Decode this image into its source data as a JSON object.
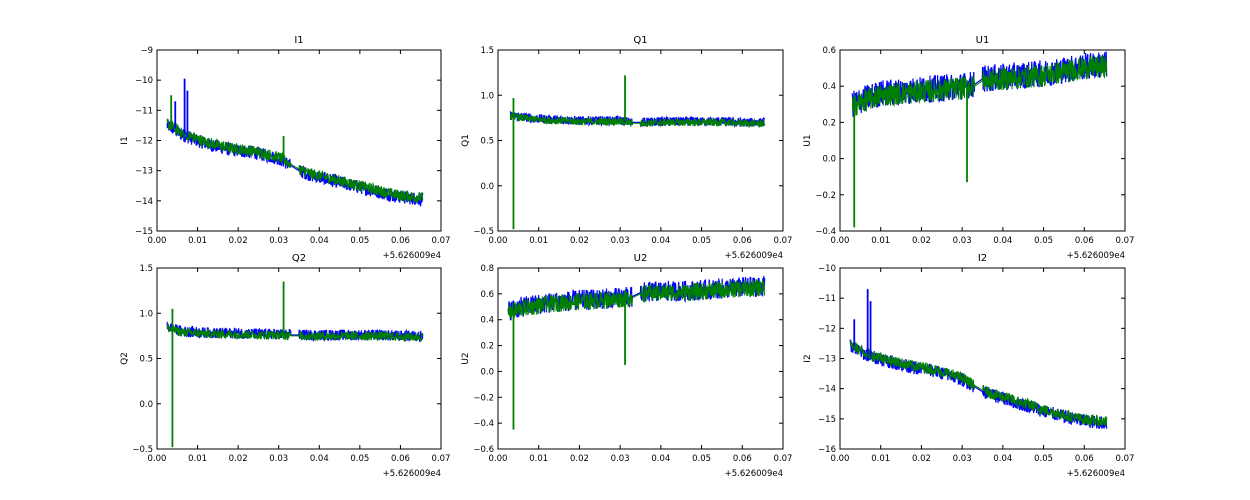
{
  "chart_data": [
    {
      "type": "line",
      "title": "I1",
      "ylabel": "I1",
      "xlim": [
        0.0,
        0.07
      ],
      "ylim": [
        -15,
        -9
      ],
      "xticks": [
        "0.00",
        "0.01",
        "0.02",
        "0.03",
        "0.04",
        "0.05",
        "0.06",
        "0.07"
      ],
      "yticks": [
        "−15",
        "−14",
        "−13",
        "−12",
        "−11",
        "−10",
        "−9"
      ],
      "x_offset_label": "+5.626009e4",
      "grid": false,
      "series": [
        {
          "color": "#0000ff",
          "x": [
            0.0025,
            0.004,
            0.006,
            0.008,
            0.01,
            0.012,
            0.015,
            0.018,
            0.021,
            0.024,
            0.027,
            0.03,
            0.032,
            0.035,
            0.038,
            0.041,
            0.044,
            0.047,
            0.05,
            0.053,
            0.056,
            0.059,
            0.062,
            0.0655
          ],
          "y": [
            -11.5,
            -11.6,
            -11.8,
            -11.9,
            -12.0,
            -12.1,
            -12.2,
            -12.3,
            -12.35,
            -12.4,
            -12.5,
            -12.6,
            -12.75,
            -13.0,
            -13.15,
            -13.25,
            -13.35,
            -13.45,
            -13.55,
            -13.65,
            -13.75,
            -13.85,
            -13.9,
            -13.95
          ]
        },
        {
          "color": "#007f00",
          "x": [
            0.0025,
            0.004,
            0.006,
            0.008,
            0.01,
            0.012,
            0.015,
            0.018,
            0.021,
            0.024,
            0.027,
            0.03,
            0.032,
            0.035,
            0.038,
            0.041,
            0.044,
            0.047,
            0.05,
            0.053,
            0.056,
            0.059,
            0.062,
            0.0655
          ],
          "y": [
            -11.45,
            -11.55,
            -11.75,
            -11.85,
            -11.95,
            -12.05,
            -12.15,
            -12.25,
            -12.3,
            -12.35,
            -12.45,
            -12.55,
            -12.7,
            -12.95,
            -13.1,
            -13.2,
            -13.3,
            -13.4,
            -13.5,
            -13.6,
            -13.7,
            -13.8,
            -13.85,
            -13.9
          ]
        }
      ],
      "spikes": [
        {
          "x": 0.0035,
          "y0": -11.5,
          "y1": -10.5,
          "color": "#007f00"
        },
        {
          "x": 0.0045,
          "y0": -11.6,
          "y1": -10.7,
          "color": "#0000ff"
        },
        {
          "x": 0.0068,
          "y0": -11.8,
          "y1": -9.95,
          "color": "#0000ff"
        },
        {
          "x": 0.0075,
          "y0": -11.9,
          "y1": -10.35,
          "color": "#0000ff"
        },
        {
          "x": 0.0312,
          "y0": -12.6,
          "y1": -11.85,
          "color": "#007f00"
        }
      ],
      "noise_amp": 0.22,
      "gaps": [
        [
          0.033,
          0.035
        ]
      ]
    },
    {
      "type": "line",
      "title": "Q1",
      "ylabel": "Q1",
      "xlim": [
        0.0,
        0.07
      ],
      "ylim": [
        -0.5,
        1.5
      ],
      "xticks": [
        "0.00",
        "0.01",
        "0.02",
        "0.03",
        "0.04",
        "0.05",
        "0.06",
        "0.07"
      ],
      "yticks": [
        "−0.5",
        "0.0",
        "0.5",
        "1.0",
        "1.5"
      ],
      "x_offset_label": "+5.626009e4",
      "grid": false,
      "series": [
        {
          "color": "#0000ff",
          "x": [
            0.003,
            0.006,
            0.01,
            0.015,
            0.02,
            0.025,
            0.03,
            0.033,
            0.035,
            0.04,
            0.045,
            0.05,
            0.055,
            0.06,
            0.0655
          ],
          "y": [
            0.78,
            0.76,
            0.74,
            0.73,
            0.72,
            0.72,
            0.72,
            0.7,
            0.7,
            0.71,
            0.71,
            0.71,
            0.71,
            0.7,
            0.7
          ]
        },
        {
          "color": "#007f00",
          "x": [
            0.003,
            0.006,
            0.01,
            0.015,
            0.02,
            0.025,
            0.03,
            0.033,
            0.035,
            0.04,
            0.045,
            0.05,
            0.055,
            0.06,
            0.0655
          ],
          "y": [
            0.77,
            0.75,
            0.73,
            0.72,
            0.71,
            0.71,
            0.71,
            0.69,
            0.69,
            0.7,
            0.7,
            0.7,
            0.7,
            0.69,
            0.69
          ]
        }
      ],
      "spikes": [
        {
          "x": 0.0038,
          "y0": 0.78,
          "y1": -0.48,
          "color": "#007f00"
        },
        {
          "x": 0.0038,
          "y0": 0.78,
          "y1": 0.97,
          "color": "#007f00"
        },
        {
          "x": 0.0312,
          "y0": 0.72,
          "y1": 1.22,
          "color": "#007f00"
        }
      ],
      "noise_amp": 0.05,
      "gaps": [
        [
          0.033,
          0.035
        ]
      ]
    },
    {
      "type": "line",
      "title": "U1",
      "ylabel": "U1",
      "xlim": [
        0.0,
        0.07
      ],
      "ylim": [
        -0.4,
        0.6
      ],
      "xticks": [
        "0.00",
        "0.01",
        "0.02",
        "0.03",
        "0.04",
        "0.05",
        "0.06",
        "0.07"
      ],
      "yticks": [
        "−0.4",
        "−0.2",
        "0.0",
        "0.2",
        "0.4",
        "0.6"
      ],
      "x_offset_label": "+5.626009e4",
      "grid": false,
      "series": [
        {
          "color": "#0000ff",
          "x": [
            0.003,
            0.006,
            0.01,
            0.015,
            0.02,
            0.025,
            0.03,
            0.033,
            0.035,
            0.04,
            0.045,
            0.05,
            0.055,
            0.06,
            0.0655
          ],
          "y": [
            0.3,
            0.33,
            0.36,
            0.37,
            0.38,
            0.39,
            0.4,
            0.41,
            0.44,
            0.45,
            0.46,
            0.47,
            0.49,
            0.51,
            0.52
          ]
        },
        {
          "color": "#007f00",
          "x": [
            0.003,
            0.006,
            0.01,
            0.015,
            0.02,
            0.025,
            0.03,
            0.033,
            0.035,
            0.04,
            0.045,
            0.05,
            0.055,
            0.06,
            0.0655
          ],
          "y": [
            0.29,
            0.32,
            0.35,
            0.36,
            0.37,
            0.38,
            0.39,
            0.4,
            0.43,
            0.44,
            0.45,
            0.46,
            0.48,
            0.5,
            0.51
          ]
        }
      ],
      "spikes": [
        {
          "x": 0.0035,
          "y0": 0.3,
          "y1": -0.38,
          "color": "#007f00"
        },
        {
          "x": 0.0312,
          "y0": 0.4,
          "y1": -0.13,
          "color": "#007f00"
        }
      ],
      "noise_amp": 0.075,
      "gaps": [
        [
          0.033,
          0.035
        ]
      ]
    },
    {
      "type": "line",
      "title": "Q2",
      "ylabel": "Q2",
      "xlim": [
        0.0,
        0.07
      ],
      "ylim": [
        -0.5,
        1.5
      ],
      "xticks": [
        "0.00",
        "0.01",
        "0.02",
        "0.03",
        "0.04",
        "0.05",
        "0.06",
        "0.07"
      ],
      "yticks": [
        "−0.5",
        "0.0",
        "0.5",
        "1.0",
        "1.5"
      ],
      "x_offset_label": "+5.626009e4",
      "grid": false,
      "series": [
        {
          "color": "#0000ff",
          "x": [
            0.0025,
            0.006,
            0.01,
            0.015,
            0.02,
            0.025,
            0.03,
            0.033,
            0.035,
            0.04,
            0.045,
            0.05,
            0.055,
            0.06,
            0.0655
          ],
          "y": [
            0.85,
            0.8,
            0.79,
            0.78,
            0.78,
            0.77,
            0.77,
            0.76,
            0.76,
            0.76,
            0.76,
            0.76,
            0.76,
            0.75,
            0.75
          ]
        },
        {
          "color": "#007f00",
          "x": [
            0.0025,
            0.006,
            0.01,
            0.015,
            0.02,
            0.025,
            0.03,
            0.033,
            0.035,
            0.04,
            0.045,
            0.05,
            0.055,
            0.06,
            0.0655
          ],
          "y": [
            0.84,
            0.79,
            0.78,
            0.77,
            0.77,
            0.76,
            0.76,
            0.75,
            0.75,
            0.75,
            0.75,
            0.75,
            0.75,
            0.74,
            0.74
          ]
        }
      ],
      "spikes": [
        {
          "x": 0.0038,
          "y0": 0.85,
          "y1": -0.48,
          "color": "#007f00"
        },
        {
          "x": 0.0038,
          "y0": 0.85,
          "y1": 1.05,
          "color": "#007f00"
        },
        {
          "x": 0.0312,
          "y0": 0.77,
          "y1": 1.35,
          "color": "#007f00"
        }
      ],
      "noise_amp": 0.06,
      "gaps": [
        [
          0.033,
          0.035
        ]
      ]
    },
    {
      "type": "line",
      "title": "U2",
      "ylabel": "U2",
      "xlim": [
        0.0,
        0.07
      ],
      "ylim": [
        -0.6,
        0.8
      ],
      "xticks": [
        "0.00",
        "0.01",
        "0.02",
        "0.03",
        "0.04",
        "0.05",
        "0.06",
        "0.07"
      ],
      "yticks": [
        "−0.6",
        "−0.4",
        "−0.2",
        "0.0",
        "0.2",
        "0.4",
        "0.6",
        "0.8"
      ],
      "x_offset_label": "+5.626009e4",
      "grid": false,
      "series": [
        {
          "color": "#0000ff",
          "x": [
            0.0025,
            0.006,
            0.01,
            0.015,
            0.02,
            0.025,
            0.03,
            0.033,
            0.035,
            0.04,
            0.045,
            0.05,
            0.055,
            0.06,
            0.0655
          ],
          "y": [
            0.47,
            0.5,
            0.52,
            0.54,
            0.55,
            0.56,
            0.57,
            0.58,
            0.61,
            0.62,
            0.62,
            0.63,
            0.64,
            0.65,
            0.66
          ]
        },
        {
          "color": "#007f00",
          "x": [
            0.0025,
            0.006,
            0.01,
            0.015,
            0.02,
            0.025,
            0.03,
            0.033,
            0.035,
            0.04,
            0.045,
            0.05,
            0.055,
            0.06,
            0.0655
          ],
          "y": [
            0.46,
            0.49,
            0.51,
            0.53,
            0.54,
            0.55,
            0.56,
            0.57,
            0.6,
            0.61,
            0.61,
            0.62,
            0.63,
            0.64,
            0.65
          ]
        }
      ],
      "spikes": [
        {
          "x": 0.0038,
          "y0": 0.47,
          "y1": -0.45,
          "color": "#007f00"
        },
        {
          "x": 0.0312,
          "y0": 0.57,
          "y1": 0.05,
          "color": "#007f00"
        }
      ],
      "noise_amp": 0.08,
      "gaps": [
        [
          0.033,
          0.035
        ]
      ]
    },
    {
      "type": "line",
      "title": "I2",
      "ylabel": "I2",
      "xlim": [
        0.0,
        0.07
      ],
      "ylim": [
        -16,
        -10
      ],
      "xticks": [
        "0.00",
        "0.01",
        "0.02",
        "0.03",
        "0.04",
        "0.05",
        "0.06",
        "0.07"
      ],
      "yticks": [
        "−16",
        "−15",
        "−14",
        "−13",
        "−12",
        "−11",
        "−10"
      ],
      "x_offset_label": "+5.626009e4",
      "grid": false,
      "series": [
        {
          "color": "#0000ff",
          "x": [
            0.0025,
            0.004,
            0.006,
            0.008,
            0.01,
            0.012,
            0.015,
            0.018,
            0.021,
            0.024,
            0.027,
            0.03,
            0.032,
            0.035,
            0.038,
            0.041,
            0.044,
            0.047,
            0.05,
            0.053,
            0.056,
            0.059,
            0.062,
            0.0655
          ],
          "y": [
            -12.55,
            -12.7,
            -12.85,
            -12.95,
            -13.0,
            -13.1,
            -13.2,
            -13.3,
            -13.35,
            -13.45,
            -13.55,
            -13.7,
            -13.85,
            -14.1,
            -14.25,
            -14.35,
            -14.5,
            -14.6,
            -14.75,
            -14.85,
            -14.95,
            -15.05,
            -15.1,
            -15.15
          ]
        },
        {
          "color": "#007f00",
          "x": [
            0.0025,
            0.004,
            0.006,
            0.008,
            0.01,
            0.012,
            0.015,
            0.018,
            0.021,
            0.024,
            0.027,
            0.03,
            0.032,
            0.035,
            0.038,
            0.041,
            0.044,
            0.047,
            0.05,
            0.053,
            0.056,
            0.059,
            0.062,
            0.0655
          ],
          "y": [
            -12.5,
            -12.65,
            -12.8,
            -12.9,
            -12.95,
            -13.05,
            -13.15,
            -13.25,
            -13.3,
            -13.4,
            -13.5,
            -13.65,
            -13.8,
            -14.05,
            -14.2,
            -14.3,
            -14.45,
            -14.55,
            -14.7,
            -14.8,
            -14.9,
            -15.0,
            -15.05,
            -15.1
          ]
        }
      ],
      "spikes": [
        {
          "x": 0.0035,
          "y0": -12.6,
          "y1": -11.7,
          "color": "#0000ff"
        },
        {
          "x": 0.0068,
          "y0": -12.85,
          "y1": -10.7,
          "color": "#0000ff"
        },
        {
          "x": 0.0075,
          "y0": -12.95,
          "y1": -11.1,
          "color": "#0000ff"
        }
      ],
      "noise_amp": 0.22,
      "gaps": [
        [
          0.033,
          0.035
        ]
      ]
    }
  ]
}
